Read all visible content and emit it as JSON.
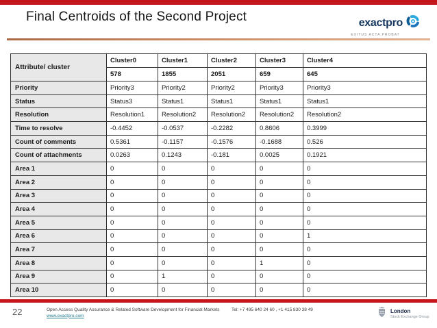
{
  "header": {
    "title": "Final Centroids of the Second Project",
    "logo": {
      "brand": "exactpro",
      "tagline": "EXITUS ACTA PROBAT"
    }
  },
  "table": {
    "corner_header": "Attribute/ cluster",
    "columns": [
      "Cluster0",
      "Cluster1",
      "Cluster2",
      "Cluster3",
      "Cluster4"
    ],
    "counts": [
      "578",
      "1855",
      "2051",
      "659",
      "645"
    ],
    "rows": [
      {
        "label": "Priority",
        "values": [
          "Priority3",
          "Priority2",
          "Priority2",
          "Priority3",
          "Priority3"
        ]
      },
      {
        "label": "Status",
        "values": [
          "Status3",
          "Status1",
          "Status1",
          "Status1",
          "Status1"
        ]
      },
      {
        "label": "Resolution",
        "values": [
          "Resolution1",
          "Resolution2",
          "Resolution2",
          "Resolution2",
          "Resolution2"
        ]
      },
      {
        "label": "Time to resolve",
        "values": [
          "-0.4452",
          "-0.0537",
          "-0.2282",
          "0.8606",
          "0.3999"
        ]
      },
      {
        "label": "Count of comments",
        "values": [
          "0.5361",
          "-0.1157",
          "-0.1576",
          "-0.1688",
          "0.526"
        ]
      },
      {
        "label": "Count of attachments",
        "values": [
          "0.0263",
          "0.1243",
          "-0.181",
          "0.0025",
          "0.1921"
        ]
      },
      {
        "label": "Area 1",
        "values": [
          "0",
          "0",
          "0",
          "0",
          "0"
        ]
      },
      {
        "label": "Area 2",
        "values": [
          "0",
          "0",
          "0",
          "0",
          "0"
        ]
      },
      {
        "label": "Area 3",
        "values": [
          "0",
          "0",
          "0",
          "0",
          "0"
        ]
      },
      {
        "label": "Area 4",
        "values": [
          "0",
          "0",
          "0",
          "0",
          "0"
        ]
      },
      {
        "label": "Area 5",
        "values": [
          "0",
          "0",
          "0",
          "0",
          "0"
        ]
      },
      {
        "label": "Area 6",
        "values": [
          "0",
          "0",
          "0",
          "0",
          "1"
        ]
      },
      {
        "label": "Area 7",
        "values": [
          "0",
          "0",
          "0",
          "0",
          "0"
        ]
      },
      {
        "label": "Area 8",
        "values": [
          "0",
          "0",
          "0",
          "1",
          "0"
        ]
      },
      {
        "label": "Area 9",
        "values": [
          "0",
          "1",
          "0",
          "0",
          "0"
        ]
      },
      {
        "label": "Area 10",
        "values": [
          "0",
          "0",
          "0",
          "0",
          "0"
        ]
      }
    ]
  },
  "footer": {
    "page_number": "22",
    "description": "Open Access Quality Assurance & Related Software Development for Financial Markets",
    "link": "www.exactpro.com",
    "tel": "Tel: +7 495 640 24 60 ,  +1 415 830 38 49",
    "lse": {
      "name": "London",
      "group": "Stock Exchange Group"
    }
  },
  "colors": {
    "accent_red": "#c4161c",
    "underline_salmon": "#c98a64",
    "header_gray": "#e8e8e8",
    "link_teal": "#1f7a8c",
    "logo_navy": "#15365e",
    "logo_blue": "#2aa9e0"
  }
}
